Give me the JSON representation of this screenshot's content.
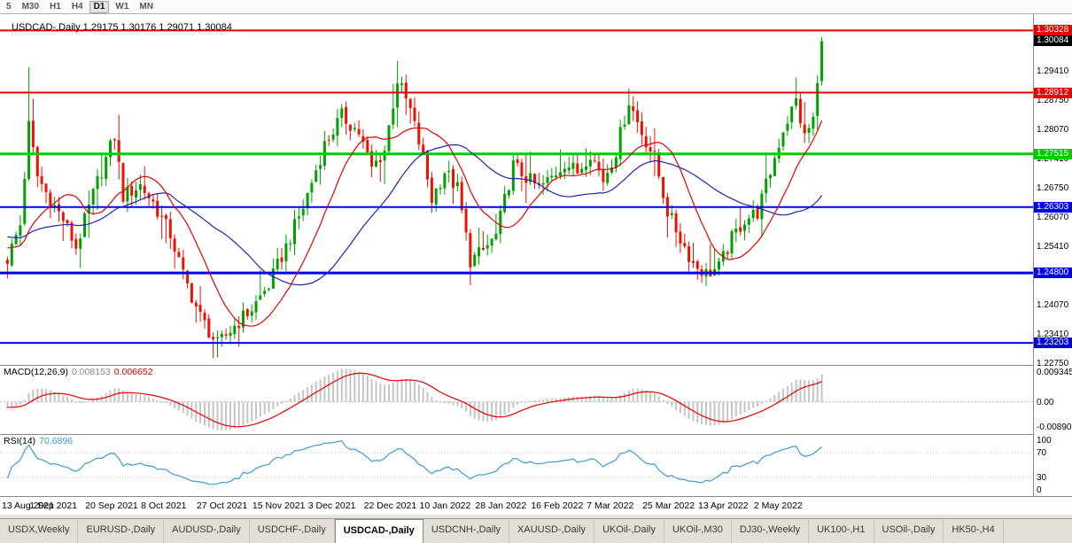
{
  "toolbar": {
    "periods": [
      "5",
      "M30",
      "H1",
      "H4",
      "D1",
      "W1",
      "MN"
    ],
    "active_period": "D1"
  },
  "chart": {
    "title": "USDCAD-,Daily  1.29175 1.30176 1.29071 1.30084",
    "price_axis": {
      "current_price": "1.30084",
      "current_price_bg": "#000000",
      "ticks": [
        "1.29410",
        "1.28750",
        "1.28070",
        "1.27410",
        "1.26750",
        "1.26070",
        "1.25410",
        "1.24750",
        "1.24070",
        "1.23410",
        "1.22750"
      ]
    },
    "levels": [
      {
        "label": "1.30328",
        "value": 1.30328,
        "color": "#E60000",
        "width": 2
      },
      {
        "label": "1.28912",
        "value": 1.28912,
        "color": "#E60000",
        "width": 2
      },
      {
        "label": "1.27515",
        "value": 1.27515,
        "color": "#00CC00",
        "width": 3
      },
      {
        "label": "1.26303",
        "value": 1.26303,
        "color": "#0000F0",
        "width": 2
      },
      {
        "label": "1.24800",
        "value": 1.248,
        "color": "#0000F0",
        "width": 3
      },
      {
        "label": "1.23203",
        "value": 1.23203,
        "color": "#0000D8",
        "width": 2
      }
    ]
  },
  "macd": {
    "name": "MACD(12,26,9)",
    "main": "0.008153",
    "signal": "0.006652",
    "axis_top": "0.009345",
    "axis_zero": "0.00",
    "axis_bottom": "-0.008902",
    "histogram_color": "#C4C4C4",
    "signal_color": "#E60000"
  },
  "rsi": {
    "name": "RSI(14)",
    "value": "70.6896",
    "axis_labels": [
      "100",
      "70",
      "30",
      "0"
    ],
    "levels": [
      70,
      30
    ],
    "line_color": "#3E9AD4"
  },
  "date_axis": [
    {
      "i": 0,
      "t": "13 Aug 2021"
    },
    {
      "i": 13,
      "t": "1 Sep 2021"
    },
    {
      "i": 26,
      "t": "20 Sep 2021"
    },
    {
      "i": 39,
      "t": "8 Oct 2021"
    },
    {
      "i": 52,
      "t": "27 Oct 2021"
    },
    {
      "i": 65,
      "t": "15 Nov 2021"
    },
    {
      "i": 78,
      "t": "3 Dec 2021"
    },
    {
      "i": 91,
      "t": "22 Dec 2021"
    },
    {
      "i": 104,
      "t": "10 Jan 2022"
    },
    {
      "i": 117,
      "t": "28 Jan 2022"
    },
    {
      "i": 130,
      "t": "16 Feb 2022"
    },
    {
      "i": 143,
      "t": "7 Mar 2022"
    },
    {
      "i": 156,
      "t": "25 Mar 2022"
    },
    {
      "i": 169,
      "t": "13 Apr 2022"
    },
    {
      "i": 182,
      "t": "2 May 2022"
    }
  ],
  "tabs": [
    {
      "label": "USDX,Weekly"
    },
    {
      "label": "EURUSD-,Daily"
    },
    {
      "label": "AUDUSD-,Daily"
    },
    {
      "label": "USDCHF-,Daily"
    },
    {
      "label": "USDCAD-,Daily"
    },
    {
      "label": "USDCNH-,Daily"
    },
    {
      "label": "XAUUSD-,Daily"
    },
    {
      "label": "UKOil-,Daily"
    },
    {
      "label": "UKOil-,M30"
    },
    {
      "label": "DJ30-,Weekly"
    },
    {
      "label": "UK100-,H1"
    },
    {
      "label": "USOil-,Daily"
    },
    {
      "label": "HK50-,H4"
    }
  ],
  "active_tab": "USDCAD-,Daily",
  "chart_data": {
    "type": "candlestick",
    "symbol": "USDCAD-",
    "timeframe": "Daily",
    "last_candle": {
      "o": 1.29175,
      "h": 1.30176,
      "l": 1.29071,
      "c": 1.30084
    },
    "n_candles": 191,
    "price_top": 1.307,
    "price_bottom": 1.227,
    "jitter": 0.0018,
    "prehistory": {
      "start": 1.2625,
      "end": 1.252
    },
    "key_levels": [
      1.30328,
      1.28912,
      1.27515,
      1.26303,
      1.248,
      1.23203
    ],
    "waypoints": [
      [
        0,
        1.2512
      ],
      [
        3,
        1.259
      ],
      [
        5,
        1.2815
      ],
      [
        7,
        1.27
      ],
      [
        10,
        1.2645
      ],
      [
        13,
        1.2602
      ],
      [
        16,
        1.2538
      ],
      [
        21,
        1.2688
      ],
      [
        25,
        1.2792
      ],
      [
        27,
        1.2655
      ],
      [
        31,
        1.268
      ],
      [
        34,
        1.264
      ],
      [
        38,
        1.2568
      ],
      [
        41,
        1.2475
      ],
      [
        45,
        1.238
      ],
      [
        49,
        1.2315
      ],
      [
        53,
        1.236
      ],
      [
        57,
        1.2398
      ],
      [
        61,
        1.2452
      ],
      [
        65,
        1.254
      ],
      [
        69,
        1.263
      ],
      [
        74,
        1.2772
      ],
      [
        78,
        1.2838
      ],
      [
        82,
        1.28
      ],
      [
        85,
        1.2718
      ],
      [
        88,
        1.276
      ],
      [
        91,
        1.292
      ],
      [
        94,
        1.285
      ],
      [
        97,
        1.2742
      ],
      [
        99,
        1.2648
      ],
      [
        102,
        1.2712
      ],
      [
        105,
        1.2672
      ],
      [
        108,
        1.2508
      ],
      [
        111,
        1.253
      ],
      [
        114,
        1.2565
      ],
      [
        118,
        1.2725
      ],
      [
        121,
        1.2698
      ],
      [
        124,
        1.2672
      ],
      [
        127,
        1.2698
      ],
      [
        130,
        1.2732
      ],
      [
        133,
        1.271
      ],
      [
        136,
        1.2755
      ],
      [
        139,
        1.2692
      ],
      [
        142,
        1.2758
      ],
      [
        145,
        1.2872
      ],
      [
        148,
        1.28
      ],
      [
        151,
        1.2742
      ],
      [
        154,
        1.262
      ],
      [
        157,
        1.2558
      ],
      [
        160,
        1.2502
      ],
      [
        163,
        1.2478
      ],
      [
        166,
        1.2492
      ],
      [
        169,
        1.2558
      ],
      [
        172,
        1.2602
      ],
      [
        175,
        1.2618
      ],
      [
        178,
        1.271
      ],
      [
        181,
        1.2808
      ],
      [
        184,
        1.2872
      ],
      [
        186,
        1.2788
      ],
      [
        188,
        1.2832
      ],
      [
        189,
        1.2905
      ],
      [
        190,
        1.30084
      ]
    ],
    "wick_overrides": [
      {
        "i": 5,
        "high": 1.2949
      },
      {
        "i": 49,
        "low": 1.2288
      },
      {
        "i": 91,
        "high": 1.2964
      },
      {
        "i": 108,
        "low": 1.2452
      },
      {
        "i": 145,
        "high": 1.2901
      },
      {
        "i": 163,
        "low": 1.245
      }
    ],
    "ma_fast_period": 13,
    "ma_slow_period": 34,
    "up_color": "#00A000",
    "down_color": "#EE1100",
    "ma_fast_color": "#E60000",
    "ma_slow_color": "#2222B0"
  }
}
